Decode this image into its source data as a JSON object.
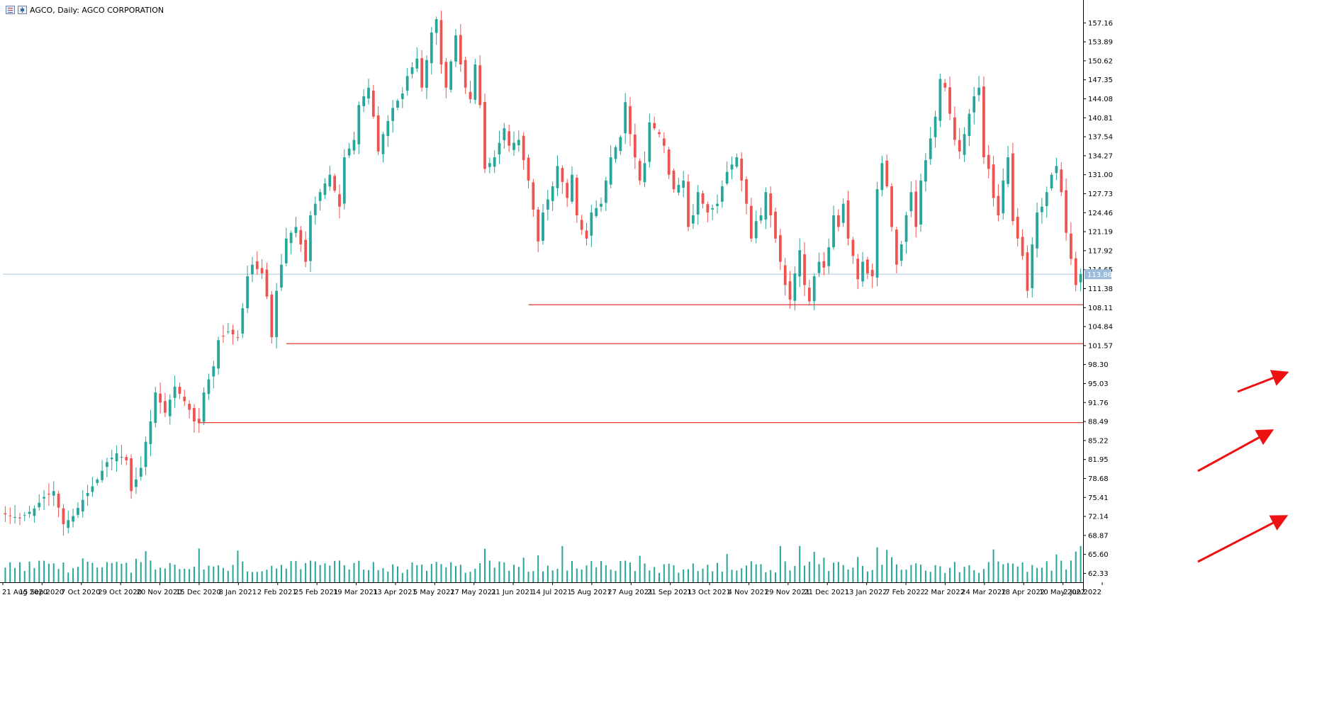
{
  "window": {
    "title": "AGCO, Daily:  AGCO CORPORATION"
  },
  "colors": {
    "bull": "#26a69a",
    "bear": "#ef5350",
    "volume": "#26a69a",
    "grid_axis": "#000000",
    "current_price_line": "#a9c4dd",
    "support_line": "#e53935",
    "arrow": "#ee1111",
    "price_tag_bg": "#9cbcd9"
  },
  "chart_data": {
    "type": "candlestick",
    "symbol": "AGCO",
    "timeframe": "Daily",
    "y_axis_ticks": [
      "157.16",
      "153.89",
      "150.62",
      "147.35",
      "144.08",
      "140.81",
      "137.54",
      "134.27",
      "131.00",
      "127.73",
      "124.46",
      "121.19",
      "117.92",
      "114.65",
      "111.38",
      "108.11",
      "104.84",
      "101.57",
      "98.30",
      "95.03",
      "91.76",
      "88.49",
      "85.22",
      "81.95",
      "78.68",
      "75.41",
      "72.14",
      "68.87",
      "65.60",
      "62.33"
    ],
    "ylim": [
      60.8,
      158.9
    ],
    "x_axis_ticks": [
      "21 Aug 2020",
      "15 Sep 2020",
      "7 Oct 2020",
      "29 Oct 2020",
      "20 Nov 2020",
      "15 Dec 2020",
      "8 Jan 2021",
      "2 Feb 2021",
      "25 Feb 2021",
      "19 Mar 2021",
      "13 Apr 2021",
      "5 May 2021",
      "27 May 2021",
      "21 Jun 2021",
      "14 Jul 2021",
      "5 Aug 2021",
      "27 Aug 2021",
      "21 Sep 2021",
      "13 Oct 2021",
      "4 Nov 2021",
      "29 Nov 2021",
      "21 Dec 2021",
      "13 Jan 2022",
      "7 Feb 2022",
      "2 Mar 2022",
      "24 Mar 2022",
      "18 Apr 2022",
      "10 May 2022",
      "2 Jun 2022"
    ],
    "current_price": 113.86,
    "current_price_label": "113.86",
    "close_path": [
      [
        0,
        72.5
      ],
      [
        3,
        71.8
      ],
      [
        6,
        73.5
      ],
      [
        8,
        75.5
      ],
      [
        10,
        76.5
      ],
      [
        12,
        70.8
      ],
      [
        14,
        72.2
      ],
      [
        16,
        75.0
      ],
      [
        19,
        78.5
      ],
      [
        21,
        81.5
      ],
      [
        23,
        83.0
      ],
      [
        25,
        81.8
      ],
      [
        26,
        76.5
      ],
      [
        28,
        80.5
      ],
      [
        29,
        85.0
      ],
      [
        30,
        88.5
      ],
      [
        31,
        93.5
      ],
      [
        33,
        90.0
      ],
      [
        35,
        94.5
      ],
      [
        37,
        92.0
      ],
      [
        38,
        90.5
      ],
      [
        39,
        88.5
      ],
      [
        40,
        88.2
      ],
      [
        41,
        93.5
      ],
      [
        43,
        98.0
      ],
      [
        44,
        102.5
      ],
      [
        46,
        104.0
      ],
      [
        48,
        103.0
      ],
      [
        49,
        108.0
      ],
      [
        50,
        113.5
      ],
      [
        51,
        115.5
      ],
      [
        53,
        114.0
      ],
      [
        54,
        110.0
      ],
      [
        55,
        103.0
      ],
      [
        56,
        111.0
      ],
      [
        58,
        120.0
      ],
      [
        60,
        122.0
      ],
      [
        62,
        116.0
      ],
      [
        63,
        124.0
      ],
      [
        65,
        128.0
      ],
      [
        67,
        131.0
      ],
      [
        69,
        125.5
      ],
      [
        70,
        134.0
      ],
      [
        72,
        137.0
      ],
      [
        73,
        143.0
      ],
      [
        75,
        146.0
      ],
      [
        76,
        141.0
      ],
      [
        77,
        135.0
      ],
      [
        78,
        138.0
      ],
      [
        80,
        142.5
      ],
      [
        82,
        145.0
      ],
      [
        83,
        148.0
      ],
      [
        85,
        151.0
      ],
      [
        86,
        146.0
      ],
      [
        88,
        155.5
      ],
      [
        89,
        157.8
      ],
      [
        90,
        150.0
      ],
      [
        91,
        146.0
      ],
      [
        93,
        155.0
      ],
      [
        94,
        150.0
      ],
      [
        95,
        146.0
      ],
      [
        96,
        144.0
      ],
      [
        97,
        150.0
      ],
      [
        98,
        143.0
      ],
      [
        99,
        132.0
      ],
      [
        101,
        134.0
      ],
      [
        103,
        139.0
      ],
      [
        104,
        136.0
      ],
      [
        106,
        137.0
      ],
      [
        108,
        130.0
      ],
      [
        109,
        125.0
      ],
      [
        110,
        119.5
      ],
      [
        111,
        124.5
      ],
      [
        113,
        129.0
      ],
      [
        114,
        132.5
      ],
      [
        116,
        127.0
      ],
      [
        117,
        131.0
      ],
      [
        118,
        124.0
      ],
      [
        119,
        121.5
      ],
      [
        120,
        120.0
      ],
      [
        121,
        124.5
      ],
      [
        123,
        126.0
      ],
      [
        124,
        130.0
      ],
      [
        125,
        134.0
      ],
      [
        127,
        137.5
      ],
      [
        128,
        143.5
      ],
      [
        129,
        138.0
      ],
      [
        130,
        134.0
      ],
      [
        131,
        130.0
      ],
      [
        132,
        133.0
      ],
      [
        133,
        140.0
      ],
      [
        135,
        138.0
      ],
      [
        136,
        136.0
      ],
      [
        137,
        131.0
      ],
      [
        138,
        128.5
      ],
      [
        140,
        130.0
      ],
      [
        141,
        122.0
      ],
      [
        142,
        124.0
      ],
      [
        143,
        128.0
      ],
      [
        144,
        126.0
      ],
      [
        145,
        124.5
      ],
      [
        147,
        126.0
      ],
      [
        148,
        129.0
      ],
      [
        149,
        131.5
      ],
      [
        151,
        134.0
      ],
      [
        152,
        130.0
      ],
      [
        153,
        126.0
      ],
      [
        154,
        120.0
      ],
      [
        155,
        123.0
      ],
      [
        156,
        124.0
      ],
      [
        157,
        128.0
      ],
      [
        158,
        124.0
      ],
      [
        159,
        120.0
      ],
      [
        160,
        116.0
      ],
      [
        161,
        112.0
      ],
      [
        162,
        109.5
      ],
      [
        163,
        114.0
      ],
      [
        164,
        118.0
      ],
      [
        165,
        112.0
      ],
      [
        166,
        109.2
      ],
      [
        167,
        113.5
      ],
      [
        168,
        116.0
      ],
      [
        169,
        115.0
      ],
      [
        170,
        118.5
      ],
      [
        171,
        124.0
      ],
      [
        172,
        122.0
      ],
      [
        173,
        126.0
      ],
      [
        174,
        120.0
      ],
      [
        175,
        117.0
      ],
      [
        176,
        113.0
      ],
      [
        177,
        116.0
      ],
      [
        178,
        114.0
      ],
      [
        179,
        113.5
      ],
      [
        180,
        128.5
      ],
      [
        181,
        133.0
      ],
      [
        182,
        129.0
      ],
      [
        183,
        122.0
      ],
      [
        184,
        115.5
      ],
      [
        185,
        119.0
      ],
      [
        186,
        124.0
      ],
      [
        187,
        128.0
      ],
      [
        188,
        122.0
      ],
      [
        189,
        130.0
      ],
      [
        190,
        133.5
      ],
      [
        192,
        141.0
      ],
      [
        193,
        147.5
      ],
      [
        194,
        146.0
      ],
      [
        195,
        141.5
      ],
      [
        196,
        137.0
      ],
      [
        197,
        135.0
      ],
      [
        198,
        138.0
      ],
      [
        199,
        141.5
      ],
      [
        200,
        144.5
      ],
      [
        201,
        146.0
      ],
      [
        202,
        134.0
      ],
      [
        203,
        132.0
      ],
      [
        204,
        127.0
      ],
      [
        205,
        124.0
      ],
      [
        206,
        130.0
      ],
      [
        207,
        134.0
      ],
      [
        208,
        123.0
      ],
      [
        209,
        120.0
      ],
      [
        210,
        117.0
      ],
      [
        211,
        111.0
      ],
      [
        212,
        119.0
      ],
      [
        213,
        124.5
      ],
      [
        214,
        125.5
      ],
      [
        215,
        128.0
      ],
      [
        216,
        131.0
      ],
      [
        217,
        132.5
      ],
      [
        218,
        128.0
      ],
      [
        219,
        121.0
      ],
      [
        220,
        116.5
      ],
      [
        221,
        112.0
      ],
      [
        222,
        113.86
      ]
    ],
    "volume_max": 68.8,
    "support_lines": [
      {
        "price": 108.6,
        "from_index": 108
      },
      {
        "price": 101.9,
        "from_index": 58
      },
      {
        "price": 88.3,
        "from_index": 40
      }
    ]
  }
}
